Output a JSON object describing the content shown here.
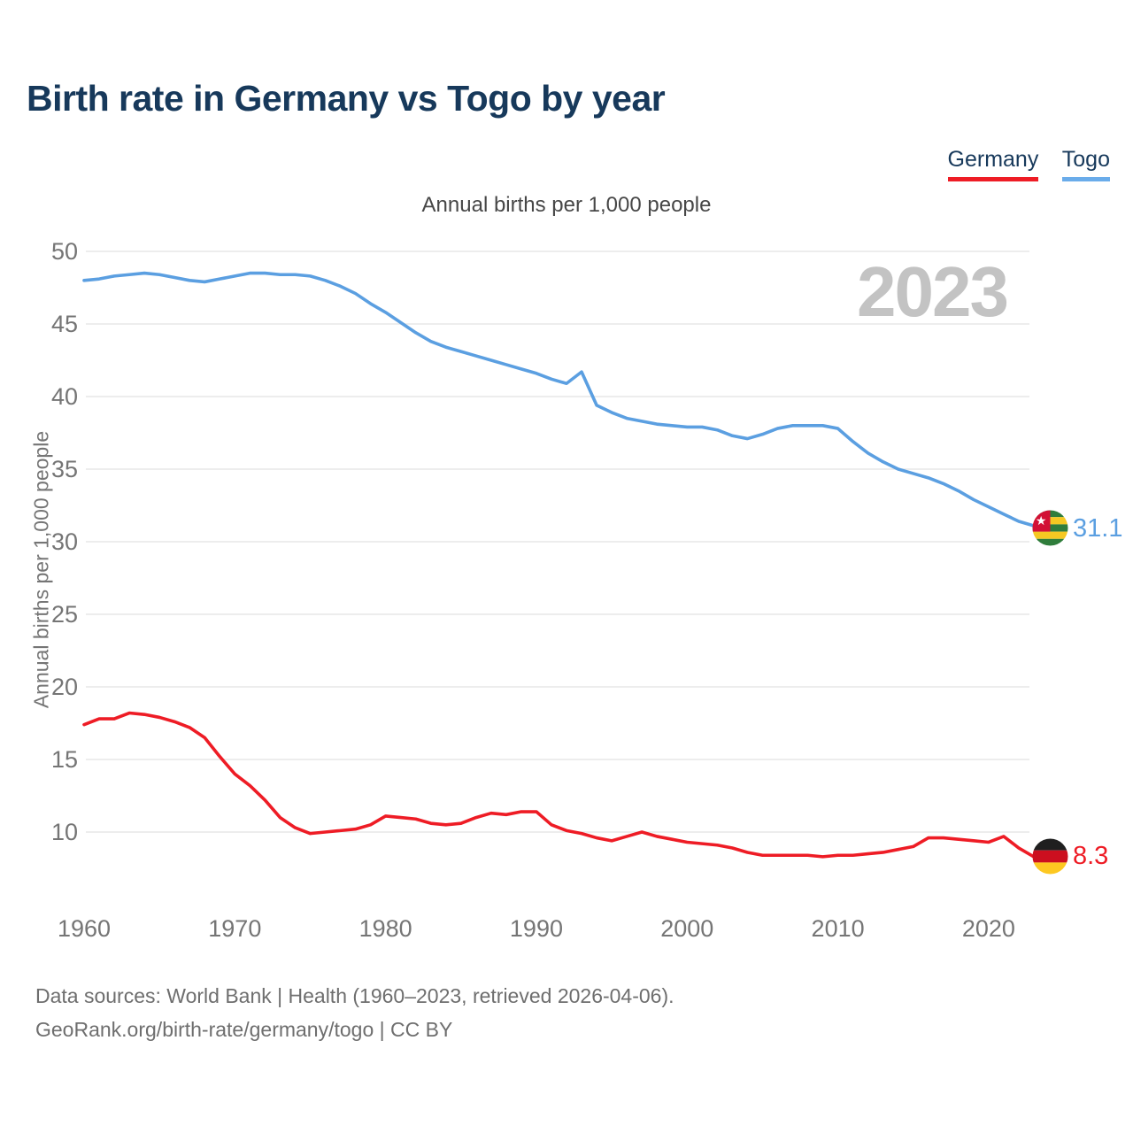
{
  "header": {
    "title": "Birth rate in Germany vs Togo by year"
  },
  "legend": {
    "position": "top-right",
    "items": [
      {
        "label": "Germany",
        "color": "#ee1c25"
      },
      {
        "label": "Togo",
        "color": "#6aacea"
      }
    ]
  },
  "subtitle": "Annual births per 1,000 people",
  "watermark": "2023",
  "footer": {
    "line1": "Data sources: World Bank | Health (1960–2023, retrieved 2026-04-06).",
    "line2": "GeoRank.org/birth-rate/germany/togo | CC BY"
  },
  "chart_data": {
    "type": "line",
    "title": "Birth rate in Germany vs Togo by year",
    "subtitle": "Annual births per 1,000 people",
    "xlabel": "",
    "ylabel": "Annual births per 1,000 people",
    "grid": "horizontal",
    "legend_position": "top-right",
    "xlim": [
      1960,
      2023
    ],
    "ylim": [
      6,
      50
    ],
    "x_ticks": [
      1960,
      1970,
      1980,
      1990,
      2000,
      2010,
      2020
    ],
    "y_ticks": [
      50,
      45,
      40,
      35,
      30,
      25,
      20,
      15,
      10
    ],
    "x_start": 1960,
    "x_step": 1,
    "series": [
      {
        "name": "Togo",
        "color": "#5b9fe1",
        "end_label": "31.1",
        "end_value": 31.1,
        "values": [
          48.0,
          48.1,
          48.3,
          48.4,
          48.5,
          48.4,
          48.2,
          48.0,
          47.9,
          48.1,
          48.3,
          48.5,
          48.5,
          48.4,
          48.4,
          48.3,
          48.0,
          47.6,
          47.1,
          46.4,
          45.8,
          45.1,
          44.4,
          43.8,
          43.4,
          43.1,
          42.8,
          42.5,
          42.2,
          41.9,
          41.6,
          41.2,
          40.9,
          41.7,
          39.4,
          38.9,
          38.5,
          38.3,
          38.1,
          38.0,
          37.9,
          37.9,
          37.7,
          37.3,
          37.1,
          37.4,
          37.8,
          38.0,
          38.0,
          38.0,
          37.8,
          36.9,
          36.1,
          35.5,
          35.0,
          34.7,
          34.4,
          34.0,
          33.5,
          32.9,
          32.4,
          31.9,
          31.4,
          31.1
        ]
      },
      {
        "name": "Germany",
        "color": "#ee1c25",
        "end_label": "8.3",
        "end_value": 8.3,
        "values": [
          17.4,
          17.8,
          17.8,
          18.2,
          18.1,
          17.9,
          17.6,
          17.2,
          16.5,
          15.2,
          14.0,
          13.2,
          12.2,
          11.0,
          10.3,
          9.9,
          10.0,
          10.1,
          10.2,
          10.5,
          11.1,
          11.0,
          10.9,
          10.6,
          10.5,
          10.6,
          11.0,
          11.3,
          11.2,
          11.4,
          11.4,
          10.5,
          10.1,
          9.9,
          9.6,
          9.4,
          9.7,
          10.0,
          9.7,
          9.5,
          9.3,
          9.2,
          9.1,
          8.9,
          8.6,
          8.4,
          8.4,
          8.4,
          8.4,
          8.3,
          8.4,
          8.4,
          8.5,
          8.6,
          8.8,
          9.0,
          9.6,
          9.6,
          9.5,
          9.4,
          9.3,
          9.7,
          8.9,
          8.3
        ]
      }
    ]
  }
}
